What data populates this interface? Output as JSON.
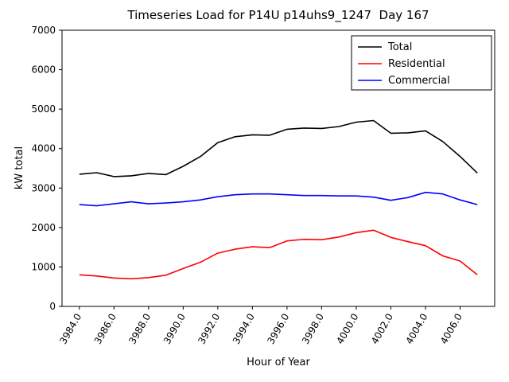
{
  "chart_data": {
    "type": "line",
    "title": "Timeseries Load for P14U p14uhs9_1247  Day 167",
    "xlabel": "Hour of Year",
    "ylabel": "kW total",
    "xlim": [
      3983,
      4008
    ],
    "ylim": [
      0,
      7000
    ],
    "grid": false,
    "legend_position": "upper right",
    "xticks": [
      3984,
      3986,
      3988,
      3990,
      3992,
      3994,
      3996,
      3998,
      4000,
      4002,
      4004,
      4006
    ],
    "xtick_labels": [
      "3984.0",
      "3986.0",
      "3988.0",
      "3990.0",
      "3992.0",
      "3994.0",
      "3996.0",
      "3998.0",
      "4000.0",
      "4002.0",
      "4004.0",
      "4006.0"
    ],
    "yticks": [
      0,
      1000,
      2000,
      3000,
      4000,
      5000,
      6000,
      7000
    ],
    "x": [
      3984,
      3985,
      3986,
      3987,
      3988,
      3989,
      3990,
      3991,
      3992,
      3993,
      3994,
      3995,
      3996,
      3997,
      3998,
      3999,
      4000,
      4001,
      4002,
      4003,
      4004,
      4005,
      4006,
      4007
    ],
    "series": [
      {
        "name": "Total",
        "color": "#000000",
        "values": [
          3350,
          3390,
          3290,
          3310,
          3370,
          3340,
          3550,
          3800,
          4150,
          4300,
          4350,
          4340,
          4490,
          4520,
          4510,
          4560,
          4670,
          4710,
          4390,
          4400,
          4450,
          4180,
          3800,
          3380
        ]
      },
      {
        "name": "Residential",
        "color": "#ff0000",
        "values": [
          800,
          770,
          720,
          700,
          730,
          790,
          960,
          1120,
          1350,
          1450,
          1510,
          1490,
          1660,
          1700,
          1690,
          1760,
          1870,
          1930,
          1750,
          1640,
          1540,
          1280,
          1150,
          800
        ]
      },
      {
        "name": "Commercial",
        "color": "#0000ff",
        "values": [
          2580,
          2550,
          2600,
          2650,
          2600,
          2620,
          2650,
          2700,
          2780,
          2830,
          2850,
          2850,
          2830,
          2810,
          2810,
          2800,
          2800,
          2770,
          2690,
          2760,
          2890,
          2850,
          2700,
          2580
        ]
      }
    ]
  }
}
